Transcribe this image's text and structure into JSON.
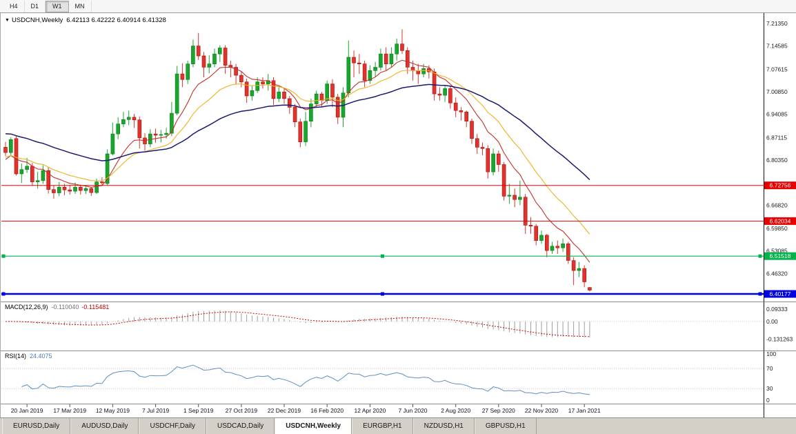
{
  "toolbar": {
    "buttons": [
      {
        "label": "H4",
        "active": false
      },
      {
        "label": "D1",
        "active": false
      },
      {
        "label": "W1",
        "active": true
      },
      {
        "label": "MN",
        "active": false
      }
    ]
  },
  "chart": {
    "marker": "▼",
    "symbol": "USDCNH,Weekly",
    "ohlc_text": "6.42113 6.42222 6.40914 6.41328"
  },
  "indicators": {
    "macd": {
      "label": "MACD(12,26,9)",
      "value_main": "-0.110040",
      "value_signal": "-0.115481"
    },
    "rsi": {
      "label": "RSI(14)",
      "value": "24.4075"
    }
  },
  "tabs": {
    "items": [
      {
        "label": "EURUSD,Daily",
        "active": false
      },
      {
        "label": "AUDUSD,Daily",
        "active": false
      },
      {
        "label": "USDCHF,Daily",
        "active": false
      },
      {
        "label": "USDCAD,Daily",
        "active": false
      },
      {
        "label": "USDCNH,Weekly",
        "active": true
      },
      {
        "label": "EURGBP,H1",
        "active": false
      },
      {
        "label": "NZDUSD,H1",
        "active": false
      },
      {
        "label": "GBPUSD,H1",
        "active": false
      }
    ]
  },
  "chart_data": {
    "type": "candlestick+indicators",
    "symbol": "USDCNH",
    "timeframe": "Weekly",
    "current_ohlc": {
      "open": 6.42113,
      "high": 6.42222,
      "low": 6.40914,
      "close": 6.41328
    },
    "ylim": [
      6.379,
      7.2424
    ],
    "x_labels": [
      "20 Jan 2019",
      "17 Mar 2019",
      "12 May 2019",
      "7 Jul 2019",
      "1 Sep 2019",
      "27 Oct 2019",
      "22 Dec 2019",
      "16 Feb 2020",
      "12 Apr 2020",
      "7 Jun 2020",
      "2 Aug 2020",
      "27 Sep 2020",
      "22 Nov 2020",
      "17 Jan 2021"
    ],
    "x_label_indices": [
      4,
      12,
      20,
      28,
      36,
      44,
      52,
      60,
      68,
      76,
      84,
      92,
      100,
      108
    ],
    "price_axis_labels": [
      {
        "p": 7.2135,
        "t": "7.21350"
      },
      {
        "p": 7.14585,
        "t": "7.14585"
      },
      {
        "p": 7.07615,
        "t": "7.07615"
      },
      {
        "p": 7.0085,
        "t": "7.00850"
      },
      {
        "p": 6.94085,
        "t": "6.94085"
      },
      {
        "p": 6.87115,
        "t": "6.87115"
      },
      {
        "p": 6.8035,
        "t": "6.80350"
      },
      {
        "p": 6.6682,
        "t": "6.66820"
      },
      {
        "p": 6.5985,
        "t": "6.59850"
      },
      {
        "p": 6.53085,
        "t": "6.53085"
      },
      {
        "p": 6.4632,
        "t": "6.46320"
      }
    ],
    "hlines": [
      {
        "name": "resistance-1",
        "price": 6.72756,
        "label": "6.72756",
        "color": "#e60000",
        "width": 1,
        "handles": false
      },
      {
        "name": "resistance-2",
        "price": 6.62034,
        "label": "6.62034",
        "color": "#e60000",
        "width": 1,
        "handles": false
      },
      {
        "name": "support-green",
        "price": 6.51518,
        "label": "6.51518",
        "color": "#00b34a",
        "width": 1.2,
        "handles": true
      },
      {
        "name": "support-blue",
        "price": 6.40177,
        "label": "6.40177",
        "color": "#0000e0",
        "width": 2.4,
        "handles": true
      }
    ],
    "colors": {
      "candle_up": "#18a62c",
      "candle_up_border": "#0b7a1c",
      "candle_down": "#e3312b",
      "candle_down_border": "#9e1410"
    },
    "ma_lines": [
      {
        "name": "fast-red",
        "period": 9,
        "seed": 6.8,
        "color": "#c23128",
        "width": 1.1
      },
      {
        "name": "medium-gold",
        "period": 18,
        "seed": 6.81,
        "color": "#edb21e",
        "width": 1.1
      },
      {
        "name": "slow-navy",
        "period": 45,
        "seed": 6.885,
        "color": "#191970",
        "width": 1.5
      }
    ],
    "macd": {
      "fast": 12,
      "slow": 26,
      "signal_period": 9,
      "hist_color": "#9e9e9e",
      "signal_color": "#d40000",
      "axis": [
        {
          "v": 0.09333,
          "t": "0.09333"
        },
        {
          "v": 0,
          "t": "0.00"
        },
        {
          "v": -0.131263,
          "t": "-0.131263"
        }
      ]
    },
    "rsi": {
      "period": 14,
      "color": "#5d8fc2",
      "levels": [
        70,
        30
      ],
      "axis": [
        {
          "v": 100,
          "t": "100"
        },
        {
          "v": 70,
          "t": "70"
        },
        {
          "v": 30,
          "t": "30"
        },
        {
          "v": 0,
          "t": "0"
        }
      ]
    },
    "candles": [
      [
        6.842,
        6.858,
        6.815,
        6.826
      ],
      [
        6.826,
        6.872,
        6.818,
        6.865
      ],
      [
        6.868,
        6.875,
        6.757,
        6.762
      ],
      [
        6.762,
        6.793,
        6.735,
        6.775
      ],
      [
        6.775,
        6.81,
        6.765,
        6.785
      ],
      [
        6.785,
        6.795,
        6.726,
        6.738
      ],
      [
        6.738,
        6.768,
        6.718,
        6.742
      ],
      [
        6.742,
        6.788,
        6.732,
        6.772
      ],
      [
        6.772,
        6.782,
        6.703,
        6.715
      ],
      [
        6.715,
        6.728,
        6.688,
        6.705
      ],
      [
        6.705,
        6.738,
        6.695,
        6.722
      ],
      [
        6.722,
        6.732,
        6.698,
        6.714
      ],
      [
        6.714,
        6.729,
        6.7,
        6.71
      ],
      [
        6.71,
        6.736,
        6.702,
        6.722
      ],
      [
        6.722,
        6.73,
        6.7,
        6.712
      ],
      [
        6.712,
        6.728,
        6.702,
        6.718
      ],
      [
        6.718,
        6.724,
        6.696,
        6.706
      ],
      [
        6.706,
        6.748,
        6.702,
        6.738
      ],
      [
        6.738,
        6.752,
        6.726,
        6.735
      ],
      [
        6.733,
        6.836,
        6.728,
        6.822
      ],
      [
        6.822,
        6.916,
        6.818,
        6.882
      ],
      [
        6.882,
        6.932,
        6.866,
        6.912
      ],
      [
        6.912,
        6.948,
        6.902,
        6.925
      ],
      [
        6.925,
        6.952,
        6.908,
        6.932
      ],
      [
        6.932,
        6.942,
        6.9,
        6.924
      ],
      [
        6.924,
        6.934,
        6.838,
        6.87
      ],
      [
        6.87,
        6.884,
        6.832,
        6.852
      ],
      [
        6.852,
        6.896,
        6.842,
        6.882
      ],
      [
        6.882,
        6.898,
        6.855,
        6.878
      ],
      [
        6.878,
        6.894,
        6.856,
        6.88
      ],
      [
        6.88,
        6.9,
        6.868,
        6.884
      ],
      [
        6.884,
        6.978,
        6.875,
        6.944
      ],
      [
        6.944,
        7.086,
        6.938,
        7.062
      ],
      [
        7.062,
        7.094,
        7.022,
        7.045
      ],
      [
        7.045,
        7.102,
        7.032,
        7.092
      ],
      [
        7.092,
        7.165,
        7.082,
        7.146
      ],
      [
        7.146,
        7.185,
        7.104,
        7.116
      ],
      [
        7.116,
        7.128,
        7.052,
        7.082
      ],
      [
        7.082,
        7.118,
        7.064,
        7.092
      ],
      [
        7.092,
        7.138,
        7.082,
        7.122
      ],
      [
        7.122,
        7.148,
        7.098,
        7.14
      ],
      [
        7.14,
        7.148,
        7.062,
        7.088
      ],
      [
        7.088,
        7.102,
        7.052,
        7.082
      ],
      [
        7.082,
        7.092,
        7.032,
        7.058
      ],
      [
        7.058,
        7.068,
        7.022,
        7.038
      ],
      [
        7.038,
        7.048,
        6.975,
        6.996
      ],
      [
        6.996,
        7.028,
        6.982,
        7.012
      ],
      [
        7.012,
        7.052,
        7.005,
        7.038
      ],
      [
        7.038,
        7.052,
        7.018,
        7.032
      ],
      [
        7.032,
        7.062,
        7.012,
        7.042
      ],
      [
        7.042,
        7.052,
        6.968,
        6.988
      ],
      [
        6.988,
        7.022,
        6.978,
        7.008
      ],
      [
        7.008,
        7.018,
        6.972,
        6.988
      ],
      [
        6.988,
        6.996,
        6.942,
        6.962
      ],
      [
        6.962,
        6.972,
        6.902,
        6.918
      ],
      [
        6.918,
        6.928,
        6.842,
        6.858
      ],
      [
        6.858,
        6.948,
        6.846,
        6.92
      ],
      [
        6.92,
        6.988,
        6.902,
        6.972
      ],
      [
        6.972,
        7.012,
        6.962,
        7.002
      ],
      [
        7.002,
        7.008,
        6.962,
        6.982
      ],
      [
        6.982,
        7.042,
        6.972,
        7.032
      ],
      [
        7.032,
        7.046,
        6.962,
        6.992
      ],
      [
        6.992,
        7.002,
        6.912,
        6.932
      ],
      [
        6.932,
        7.022,
        6.902,
        7.005
      ],
      [
        7.005,
        7.162,
        6.992,
        7.112
      ],
      [
        7.112,
        7.132,
        7.052,
        7.095
      ],
      [
        7.095,
        7.122,
        7.062,
        7.092
      ],
      [
        7.092,
        7.102,
        7.022,
        7.042
      ],
      [
        7.042,
        7.088,
        7.032,
        7.072
      ],
      [
        7.072,
        7.098,
        7.052,
        7.082
      ],
      [
        7.082,
        7.138,
        7.072,
        7.122
      ],
      [
        7.122,
        7.142,
        7.072,
        7.092
      ],
      [
        7.092,
        7.142,
        7.082,
        7.122
      ],
      [
        7.122,
        7.168,
        7.102,
        7.152
      ],
      [
        7.152,
        7.196,
        7.122,
        7.132
      ],
      [
        7.132,
        7.142,
        7.062,
        7.082
      ],
      [
        7.082,
        7.102,
        7.042,
        7.072
      ],
      [
        7.072,
        7.092,
        7.032,
        7.062
      ],
      [
        7.062,
        7.092,
        7.052,
        7.078
      ],
      [
        7.078,
        7.088,
        7.048,
        7.068
      ],
      [
        7.068,
        7.078,
        6.982,
        7.002
      ],
      [
        7.002,
        7.022,
        6.982,
        6.998
      ],
      [
        6.998,
        7.028,
        6.978,
        7.018
      ],
      [
        7.018,
        7.028,
        6.958,
        6.975
      ],
      [
        6.975,
        6.992,
        6.932,
        6.952
      ],
      [
        6.952,
        6.962,
        6.922,
        6.948
      ],
      [
        6.948,
        6.952,
        6.902,
        6.92
      ],
      [
        6.92,
        6.928,
        6.852,
        6.868
      ],
      [
        6.868,
        6.882,
        6.822,
        6.842
      ],
      [
        6.842,
        6.856,
        6.818,
        6.838
      ],
      [
        6.838,
        6.848,
        6.748,
        6.768
      ],
      [
        6.768,
        6.838,
        6.758,
        6.822
      ],
      [
        6.822,
        6.832,
        6.768,
        6.79
      ],
      [
        6.79,
        6.798,
        6.682,
        6.695
      ],
      [
        6.695,
        6.732,
        6.672,
        6.698
      ],
      [
        6.698,
        6.718,
        6.662,
        6.685
      ],
      [
        6.685,
        6.742,
        6.668,
        6.692
      ],
      [
        6.692,
        6.702,
        6.582,
        6.608
      ],
      [
        6.608,
        6.632,
        6.582,
        6.605
      ],
      [
        6.605,
        6.612,
        6.548,
        6.562
      ],
      [
        6.562,
        6.592,
        6.552,
        6.578
      ],
      [
        6.578,
        6.582,
        6.512,
        6.532
      ],
      [
        6.532,
        6.558,
        6.522,
        6.545
      ],
      [
        6.545,
        6.562,
        6.522,
        6.54
      ],
      [
        6.54,
        6.568,
        6.528,
        6.552
      ],
      [
        6.552,
        6.558,
        6.492,
        6.502
      ],
      [
        6.502,
        6.512,
        6.428,
        6.472
      ],
      [
        6.472,
        6.498,
        6.452,
        6.478
      ],
      [
        6.478,
        6.488,
        6.422,
        6.438
      ],
      [
        6.42113,
        6.42222,
        6.40914,
        6.41328
      ]
    ]
  }
}
